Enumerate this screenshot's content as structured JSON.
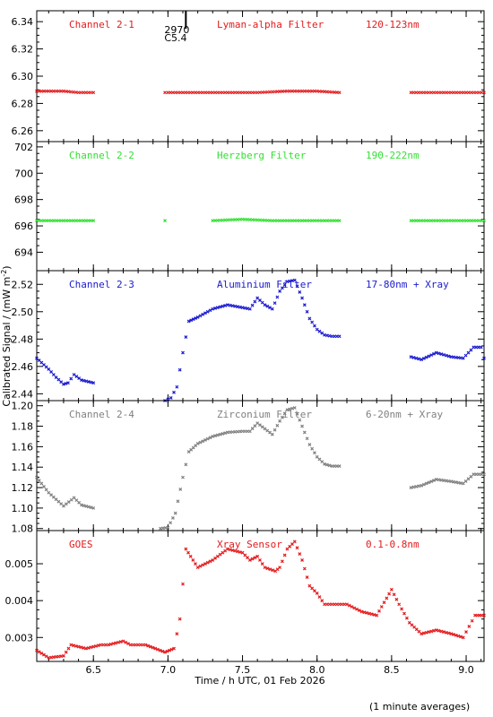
{
  "ylabel": "Calibrated Signal / (mW m",
  "ylabel_sup": "-2",
  "ylabel_end": ")",
  "xlabel": "Time / h UTC, 01 Feb 2026",
  "footnote": "(1 minute averages)",
  "marker_text": [
    "2970",
    "C5.4"
  ],
  "chart_data": [
    {
      "type": "scatter",
      "name_label": "Channel 2-1",
      "filter_label": "Lyman-alpha Filter",
      "range_label": "120-123nm",
      "color": "#e41a1c",
      "xlim": [
        6.12,
        9.12
      ],
      "ylim": [
        6.252,
        6.348
      ],
      "yticks": [
        6.26,
        6.28,
        6.3,
        6.32,
        6.34
      ],
      "ytick_labels": [
        "6.26",
        "6.28",
        "6.30",
        "6.32",
        "6.34"
      ],
      "points": [
        [
          6.12,
          6.289
        ],
        [
          6.2,
          6.289
        ],
        [
          6.3,
          6.289
        ],
        [
          6.4,
          6.288
        ],
        [
          6.5,
          6.288
        ],
        [
          6.98,
          6.288
        ],
        [
          7.0,
          6.288
        ],
        [
          7.2,
          6.288
        ],
        [
          7.4,
          6.288
        ],
        [
          7.6,
          6.288
        ],
        [
          7.8,
          6.289
        ],
        [
          8.0,
          6.289
        ],
        [
          8.15,
          6.288
        ],
        [
          8.63,
          6.288
        ],
        [
          8.8,
          6.288
        ],
        [
          9.0,
          6.288
        ],
        [
          9.12,
          6.288
        ]
      ]
    },
    {
      "type": "scatter",
      "name_label": "Channel 2-2",
      "filter_label": "Herzberg Filter",
      "range_label": "190-222nm",
      "color": "#33e033",
      "xlim": [
        6.12,
        9.12
      ],
      "ylim": [
        692.6,
        702.4
      ],
      "yticks": [
        694,
        696,
        698,
        700,
        702
      ],
      "ytick_labels": [
        "694",
        "696",
        "698",
        "700",
        "702"
      ],
      "points": [
        [
          6.12,
          696.4
        ],
        [
          6.3,
          696.4
        ],
        [
          6.5,
          696.4
        ],
        [
          6.98,
          696.4
        ],
        [
          7.3,
          696.4
        ],
        [
          7.5,
          696.5
        ],
        [
          7.7,
          696.4
        ],
        [
          8.0,
          696.4
        ],
        [
          8.15,
          696.4
        ],
        [
          8.63,
          696.4
        ],
        [
          8.9,
          696.4
        ],
        [
          9.12,
          696.4
        ]
      ]
    },
    {
      "type": "scatter",
      "name_label": "Channel 2-3",
      "filter_label": "Aluminium Filter",
      "range_label": "17-80nm + Xray",
      "color": "#1a1ad0",
      "xlim": [
        6.12,
        9.12
      ],
      "ylim": [
        2.435,
        2.53
      ],
      "yticks": [
        2.44,
        2.46,
        2.48,
        2.5,
        2.52
      ],
      "ytick_labels": [
        "2.44",
        "2.46",
        "2.48",
        "2.50",
        "2.52"
      ],
      "points": [
        [
          6.12,
          2.466
        ],
        [
          6.2,
          2.458
        ],
        [
          6.25,
          2.452
        ],
        [
          6.3,
          2.447
        ],
        [
          6.33,
          2.448
        ],
        [
          6.37,
          2.454
        ],
        [
          6.42,
          2.45
        ],
        [
          6.5,
          2.448
        ],
        [
          6.98,
          2.435
        ],
        [
          7.02,
          2.437
        ],
        [
          7.06,
          2.445
        ],
        [
          7.1,
          2.47
        ],
        [
          7.14,
          2.493
        ],
        [
          7.2,
          2.496
        ],
        [
          7.3,
          2.502
        ],
        [
          7.4,
          2.505
        ],
        [
          7.5,
          2.503
        ],
        [
          7.55,
          2.502
        ],
        [
          7.6,
          2.51
        ],
        [
          7.65,
          2.505
        ],
        [
          7.7,
          2.502
        ],
        [
          7.75,
          2.515
        ],
        [
          7.8,
          2.522
        ],
        [
          7.85,
          2.523
        ],
        [
          7.9,
          2.51
        ],
        [
          7.95,
          2.495
        ],
        [
          8.0,
          2.487
        ],
        [
          8.05,
          2.483
        ],
        [
          8.1,
          2.482
        ],
        [
          8.15,
          2.482
        ],
        [
          8.63,
          2.467
        ],
        [
          8.7,
          2.465
        ],
        [
          8.8,
          2.47
        ],
        [
          8.9,
          2.467
        ],
        [
          8.98,
          2.466
        ],
        [
          9.05,
          2.474
        ],
        [
          9.1,
          2.474
        ],
        [
          9.12,
          2.466
        ]
      ]
    },
    {
      "type": "scatter",
      "name_label": "Channel 2-4",
      "filter_label": "Zirconium Filter",
      "range_label": "6-20nm + Xray",
      "color": "#808080",
      "xlim": [
        6.12,
        9.12
      ],
      "ylim": [
        1.078,
        1.205
      ],
      "yticks": [
        1.08,
        1.1,
        1.12,
        1.14,
        1.16,
        1.18,
        1.2
      ],
      "ytick_labels": [
        "1.08",
        "1.10",
        "1.12",
        "1.14",
        "1.16",
        "1.18",
        "1.20"
      ],
      "points": [
        [
          6.12,
          1.13
        ],
        [
          6.2,
          1.115
        ],
        [
          6.3,
          1.102
        ],
        [
          6.37,
          1.11
        ],
        [
          6.42,
          1.103
        ],
        [
          6.5,
          1.1
        ],
        [
          6.95,
          1.08
        ],
        [
          7.0,
          1.081
        ],
        [
          7.05,
          1.095
        ],
        [
          7.1,
          1.13
        ],
        [
          7.14,
          1.155
        ],
        [
          7.2,
          1.163
        ],
        [
          7.3,
          1.17
        ],
        [
          7.4,
          1.174
        ],
        [
          7.5,
          1.175
        ],
        [
          7.55,
          1.175
        ],
        [
          7.6,
          1.183
        ],
        [
          7.7,
          1.172
        ],
        [
          7.75,
          1.185
        ],
        [
          7.8,
          1.196
        ],
        [
          7.85,
          1.198
        ],
        [
          7.9,
          1.18
        ],
        [
          7.95,
          1.162
        ],
        [
          8.0,
          1.15
        ],
        [
          8.05,
          1.143
        ],
        [
          8.1,
          1.141
        ],
        [
          8.15,
          1.141
        ],
        [
          8.63,
          1.12
        ],
        [
          8.7,
          1.122
        ],
        [
          8.8,
          1.128
        ],
        [
          8.9,
          1.126
        ],
        [
          8.98,
          1.124
        ],
        [
          9.05,
          1.133
        ],
        [
          9.12,
          1.133
        ]
      ]
    },
    {
      "type": "scatter",
      "name_label": "GOES",
      "filter_label": "Xray Sensor",
      "range_label": "0.1-0.8nm",
      "color": "#e41a1c",
      "xlim": [
        6.12,
        9.12
      ],
      "ylim": [
        0.00235,
        0.0059
      ],
      "yticks": [
        0.003,
        0.004,
        0.005
      ],
      "ytick_labels": [
        "0.003",
        "0.004",
        "0.005"
      ],
      "points": [
        [
          6.12,
          0.00265
        ],
        [
          6.2,
          0.00245
        ],
        [
          6.3,
          0.0025
        ],
        [
          6.35,
          0.0028
        ],
        [
          6.45,
          0.0027
        ],
        [
          6.55,
          0.0028
        ],
        [
          6.6,
          0.0028
        ],
        [
          6.7,
          0.0029
        ],
        [
          6.75,
          0.0028
        ],
        [
          6.85,
          0.0028
        ],
        [
          6.98,
          0.0026
        ],
        [
          7.04,
          0.0027
        ],
        [
          7.08,
          0.0035
        ],
        [
          7.12,
          0.0054
        ],
        [
          7.2,
          0.0049
        ],
        [
          7.3,
          0.0051
        ],
        [
          7.4,
          0.0054
        ],
        [
          7.5,
          0.0053
        ],
        [
          7.55,
          0.0051
        ],
        [
          7.6,
          0.0052
        ],
        [
          7.65,
          0.0049
        ],
        [
          7.72,
          0.0048
        ],
        [
          7.75,
          0.0049
        ],
        [
          7.8,
          0.0054
        ],
        [
          7.85,
          0.0056
        ],
        [
          7.9,
          0.0051
        ],
        [
          7.95,
          0.0044
        ],
        [
          8.0,
          0.0042
        ],
        [
          8.05,
          0.0039
        ],
        [
          8.1,
          0.0039
        ],
        [
          8.2,
          0.0039
        ],
        [
          8.3,
          0.0037
        ],
        [
          8.4,
          0.0036
        ],
        [
          8.5,
          0.0043
        ],
        [
          8.55,
          0.0039
        ],
        [
          8.62,
          0.0034
        ],
        [
          8.7,
          0.0031
        ],
        [
          8.8,
          0.0032
        ],
        [
          8.9,
          0.0031
        ],
        [
          8.98,
          0.003
        ],
        [
          9.02,
          0.0033
        ],
        [
          9.06,
          0.0036
        ],
        [
          9.12,
          0.0036
        ]
      ]
    }
  ],
  "xaxis": {
    "xlim": [
      6.12,
      9.12
    ],
    "ticks": [
      6.5,
      7.0,
      7.5,
      8.0,
      8.5,
      9.0
    ],
    "tick_labels": [
      "6.5",
      "7.0",
      "7.5",
      "8.0",
      "8.5",
      "9.0"
    ],
    "minor_step": 0.1
  },
  "marker_x": 7.12
}
